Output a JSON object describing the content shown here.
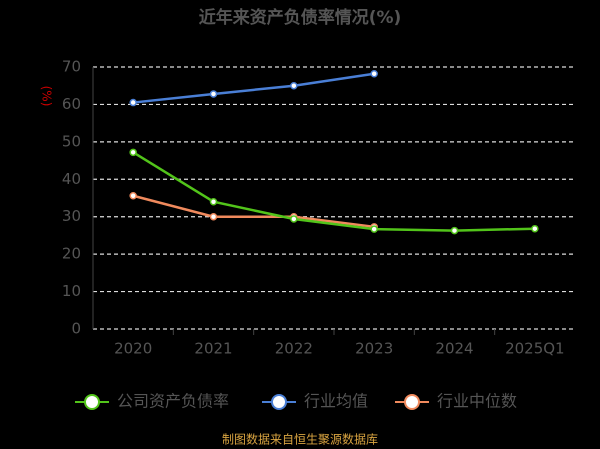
{
  "chart_data": {
    "type": "line",
    "title": "近年来资产负债率情况(%)",
    "y_label": "(%)",
    "categories": [
      "2020",
      "2021",
      "2022",
      "2023",
      "2024",
      "2025Q1"
    ],
    "series": [
      {
        "name": "公司资产负债率",
        "color": "#52c41a",
        "values": [
          47.2,
          34.0,
          29.4,
          26.7,
          26.3,
          26.8
        ]
      },
      {
        "name": "行业均值",
        "color": "#4a7fd6",
        "values": [
          60.5,
          62.8,
          65.0,
          68.2,
          null,
          null
        ]
      },
      {
        "name": "行业中位数",
        "color": "#f08a5d",
        "values": [
          35.6,
          30.0,
          30.0,
          27.3,
          null,
          null
        ]
      }
    ],
    "ylim": [
      0,
      70
    ],
    "yticks": [
      0,
      10,
      20,
      30,
      40,
      50,
      60,
      70
    ],
    "grid": true,
    "source": "制图数据来自恒生聚源数据库"
  }
}
